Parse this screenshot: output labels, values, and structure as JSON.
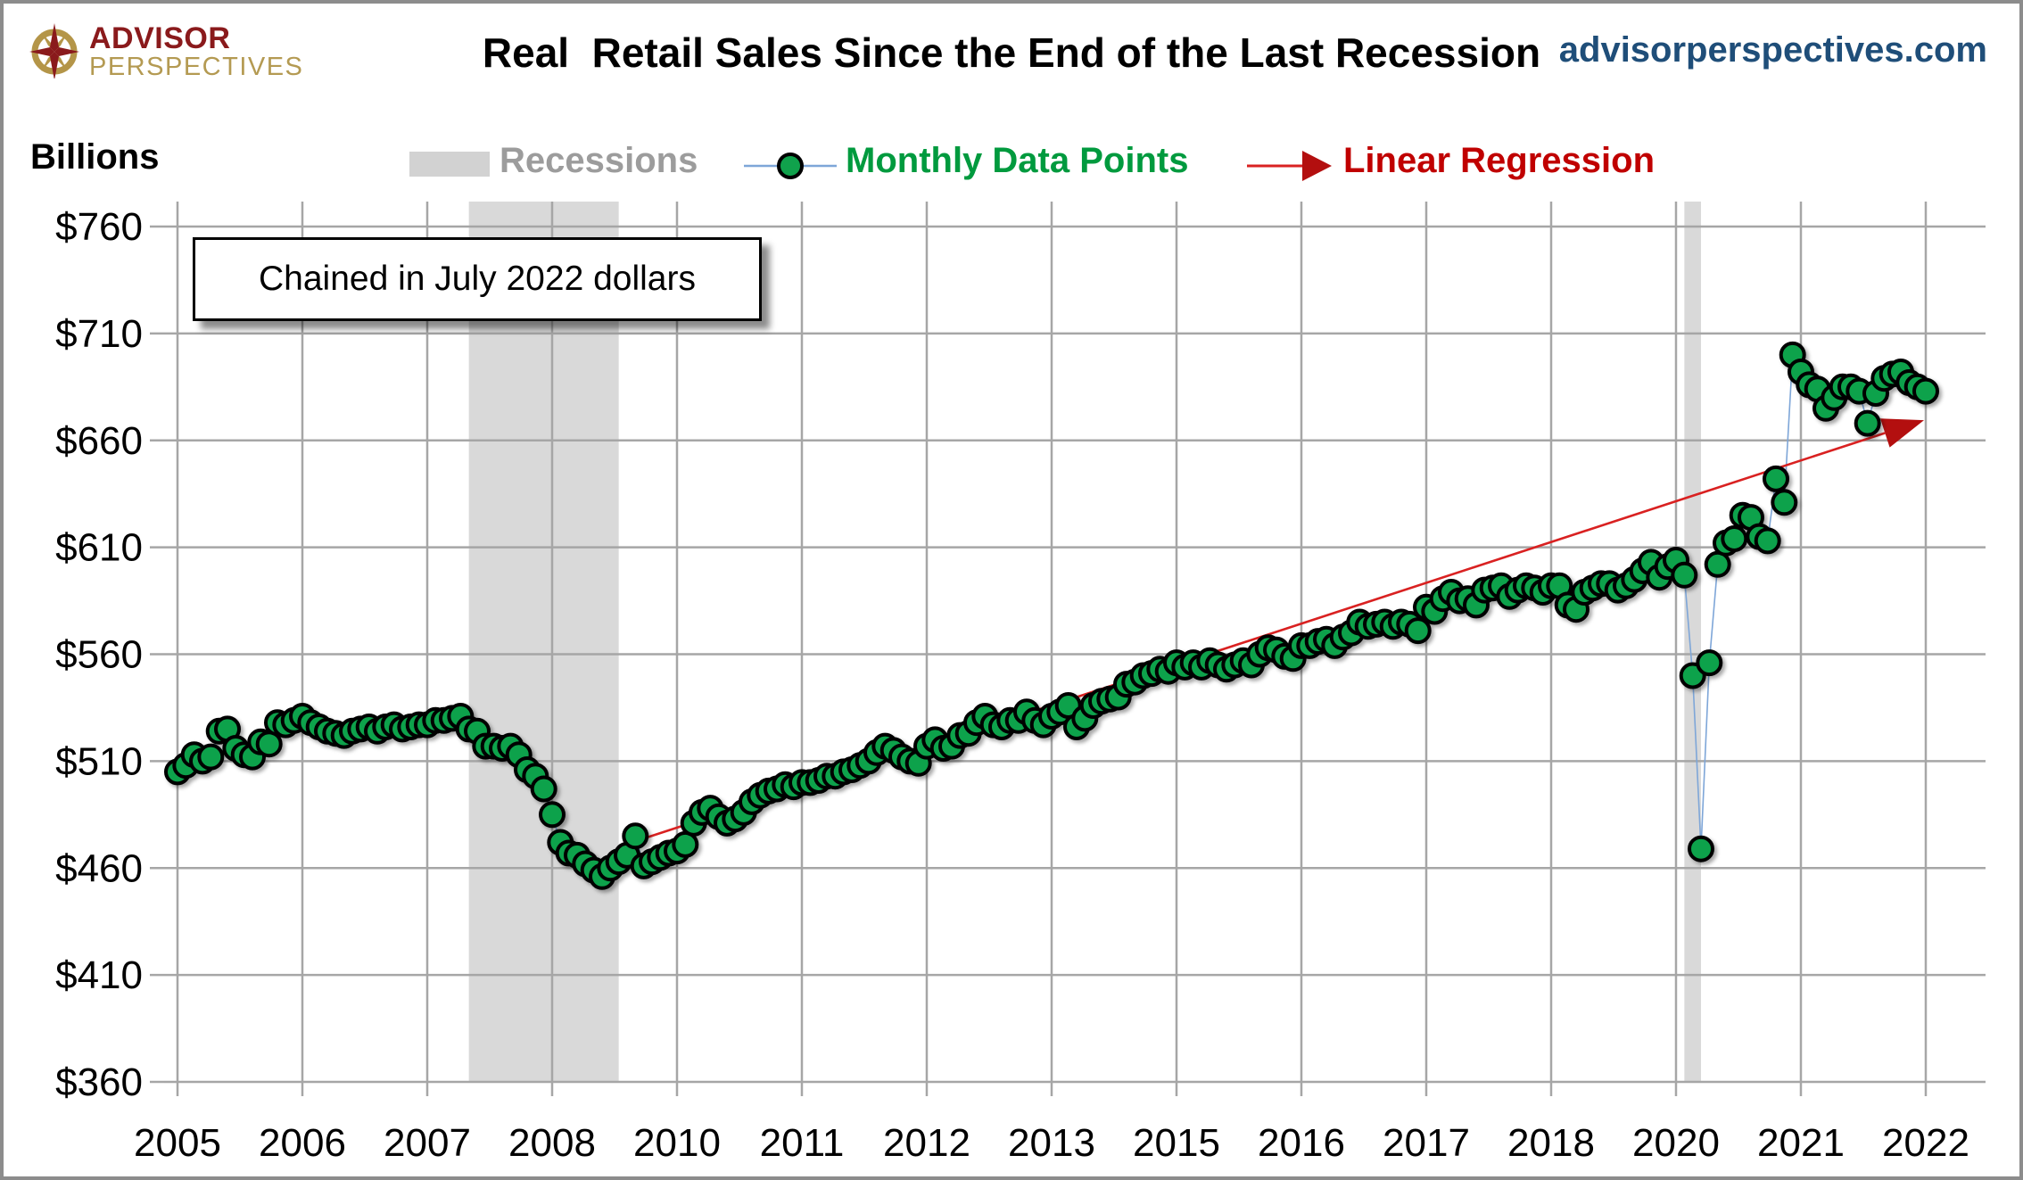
{
  "header": {
    "logo_line1": "ADVISOR",
    "logo_line2": "PERSPECTIVES",
    "title": "Real  Retail Sales Since the End of the Last Recession",
    "site": "advisorperspectives.com"
  },
  "legend": {
    "recessions_label": "Recessions",
    "monthly_label": "Monthly Data Points",
    "regression_label": "Linear Regression"
  },
  "chart_data": {
    "type": "scatter",
    "title": "Real  Retail Sales Since the End of the Last Recession",
    "y_axis_title": "Billions",
    "annotation": "Chained in July 2022 dollars",
    "y_tick_prefix": "$",
    "y_ticks": [
      760,
      710,
      660,
      610,
      560,
      510,
      460,
      410,
      360
    ],
    "ylim": [
      360,
      760
    ],
    "x_tick_labels": [
      "2005",
      "2006",
      "2007",
      "2008",
      "2010",
      "2011",
      "2012",
      "2013",
      "2015",
      "2016",
      "2017",
      "2018",
      "2020",
      "2021",
      "2022"
    ],
    "x_tick_months": [
      0,
      15,
      30,
      45,
      60,
      75,
      90,
      105,
      120,
      135,
      150,
      165,
      180,
      195,
      210
    ],
    "x_start": "2005-01",
    "x_end": "2022-07",
    "grid": true,
    "legend_position": "top",
    "recessions": [
      {
        "start_month": 35,
        "end_month": 53
      },
      {
        "start_month": 181,
        "end_month": 183
      }
    ],
    "series": [
      {
        "name": "Monthly Data Points",
        "frequency": "monthly",
        "start": "2005-01",
        "values": [
          505,
          508,
          513,
          510,
          512,
          524,
          525,
          516,
          513,
          512,
          519,
          518,
          528,
          527,
          529,
          531,
          528,
          526,
          524,
          523,
          522,
          524,
          525,
          526,
          524,
          526,
          527,
          525,
          526,
          527,
          527,
          529,
          529,
          530,
          531,
          525,
          524,
          517,
          517,
          516,
          517,
          513,
          506,
          503,
          497,
          485,
          472,
          467,
          466,
          462,
          459,
          456,
          460,
          463,
          466,
          475,
          461,
          463,
          465,
          467,
          468,
          471,
          481,
          486,
          488,
          484,
          481,
          483,
          486,
          491,
          494,
          496,
          497,
          499,
          498,
          500,
          500,
          501,
          503,
          503,
          505,
          506,
          508,
          510,
          514,
          517,
          515,
          512,
          510,
          509,
          517,
          520,
          516,
          517,
          522,
          523,
          528,
          531,
          527,
          526,
          529,
          529,
          533,
          529,
          527,
          531,
          533,
          536,
          526,
          530,
          536,
          538,
          539,
          540,
          546,
          547,
          550,
          551,
          553,
          552,
          556,
          554,
          556,
          554,
          557,
          555,
          553,
          555,
          557,
          555,
          560,
          563,
          562,
          559,
          558,
          564,
          564,
          566,
          567,
          564,
          568,
          570,
          575,
          573,
          574,
          575,
          573,
          575,
          574,
          571,
          582,
          580,
          586,
          589,
          585,
          586,
          583,
          590,
          591,
          592,
          587,
          590,
          592,
          591,
          589,
          592,
          592,
          583,
          581,
          589,
          591,
          593,
          593,
          590,
          592,
          595,
          599,
          603,
          596,
          601,
          604,
          597,
          550,
          469,
          556,
          602,
          612,
          614,
          625,
          624,
          615,
          613,
          642,
          631,
          700,
          692,
          686,
          684,
          675,
          680,
          685,
          685,
          683,
          668,
          682,
          689,
          691,
          692,
          687,
          685,
          683
        ]
      }
    ],
    "regression": {
      "name": "Linear Regression",
      "start_month": 53,
      "start_value": 470,
      "end_month": 210,
      "end_value": 669
    },
    "colors": {
      "marker_green": "#10a24c",
      "marker_outline": "#000000",
      "connector_blue": "#7ea6d8",
      "regression_red": "#d92121",
      "arrow_red": "#b30f0f",
      "grid_gray": "#a6a6a6",
      "recession_band": "#d9d9d9",
      "legend_gray_text": "#9c9c9c",
      "legend_green_text": "#009a3e",
      "legend_red_text": "#c00000",
      "site_blue": "#1f4e79",
      "logo_maroon": "#8a1a1c",
      "logo_gold": "#b49a52"
    }
  }
}
